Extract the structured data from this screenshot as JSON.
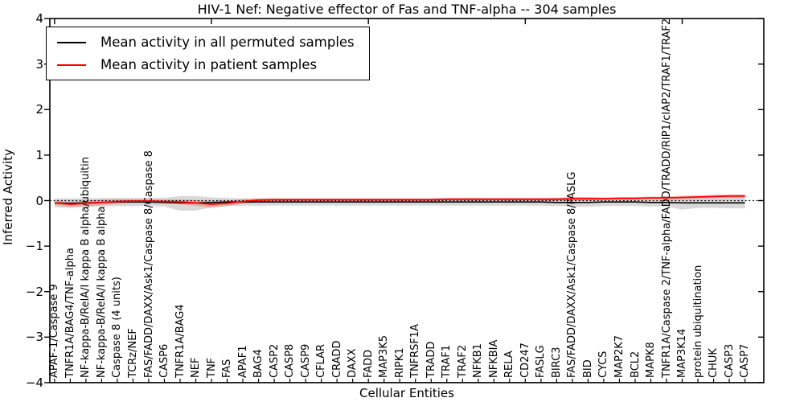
{
  "chart_data": {
    "type": "line",
    "title": "HIV-1 Nef: Negative effector of Fas and TNF-alpha -- 304 samples",
    "xlabel": "Cellular Entities",
    "ylabel": "Inferred Activity",
    "ylim": [
      -4,
      4
    ],
    "yticks": [
      4,
      3,
      2,
      1,
      0,
      -1,
      -2,
      -3,
      -4
    ],
    "grid": false,
    "legend": {
      "position": "upper left",
      "entries": [
        {
          "label": "Mean activity in all permuted samples",
          "color": "#000000"
        },
        {
          "label": "Mean activity in patient samples",
          "color": "#ff0000"
        }
      ]
    },
    "zero_line": {
      "value": 0,
      "style": "dotted",
      "color": "#000000"
    },
    "categories": [
      "APAF-1/Caspase 9",
      "TNFR1A/BAG4/TNF-alpha",
      "NF-kappa-B/RelA/I kappa B alpha/ubiquitin",
      "NF-kappa-B/RelA/I kappa B alpha",
      "Caspase 8 (4 units)",
      "TCRz/NEF",
      "FAS/FADD/DAXX/Ask1/Caspase 8/Caspase 8",
      "CASP6",
      "TNFR1A/BAG4",
      "NEF",
      "TNF",
      "FAS",
      "APAF1",
      "BAG4",
      "CASP2",
      "CASP8",
      "CASP9",
      "CFLAR",
      "CRADD",
      "DAXX",
      "FADD",
      "MAP3K5",
      "RIPK1",
      "TNFRSF1A",
      "TRADD",
      "TRAF1",
      "TRAF2",
      "NFKB1",
      "NFKBIA",
      "RELA",
      "CD247",
      "FASLG",
      "BIRC3",
      "FAS/FADD/DAXX/Ask1/Caspase 8/FASLG",
      "BID",
      "CYCS",
      "MAP2K7",
      "BCL2",
      "MAPK8",
      "TNFR1A/Caspase 2/TNF-alpha/FADD/TRADD/RIP1/cIAP2/TRAF1/TRAF2",
      "MAP3K14",
      "protein ubiquitination",
      "CHUK",
      "CASP3",
      "CASP7"
    ],
    "series": [
      {
        "name": "Mean activity in all permuted samples",
        "color": "#000000",
        "band_color": "rgba(0,0,0,0.15)",
        "values": [
          -0.05,
          -0.06,
          -0.05,
          -0.04,
          -0.03,
          -0.03,
          -0.03,
          -0.04,
          -0.05,
          -0.05,
          -0.04,
          -0.03,
          -0.03,
          -0.03,
          -0.03,
          -0.03,
          -0.03,
          -0.03,
          -0.03,
          -0.03,
          -0.03,
          -0.03,
          -0.03,
          -0.03,
          -0.03,
          -0.03,
          -0.03,
          -0.03,
          -0.03,
          -0.03,
          -0.03,
          -0.03,
          -0.04,
          -0.04,
          -0.04,
          -0.03,
          -0.03,
          -0.03,
          -0.04,
          -0.04,
          -0.05,
          -0.05,
          -0.05,
          -0.05,
          -0.05
        ],
        "band_upper": [
          0.05,
          0.05,
          0.05,
          0.06,
          0.06,
          0.06,
          0.06,
          0.06,
          0.1,
          0.1,
          0.07,
          0.06,
          0.05,
          0.05,
          0.05,
          0.05,
          0.05,
          0.05,
          0.05,
          0.05,
          0.05,
          0.05,
          0.05,
          0.05,
          0.05,
          0.05,
          0.05,
          0.05,
          0.05,
          0.05,
          0.05,
          0.05,
          0.06,
          0.07,
          0.07,
          0.06,
          0.06,
          0.06,
          0.06,
          0.06,
          0.08,
          0.07,
          0.07,
          0.08,
          0.08
        ],
        "band_lower": [
          -0.15,
          -0.16,
          -0.15,
          -0.13,
          -0.12,
          -0.12,
          -0.12,
          -0.13,
          -0.22,
          -0.22,
          -0.15,
          -0.12,
          -0.11,
          -0.11,
          -0.11,
          -0.11,
          -0.11,
          -0.11,
          -0.11,
          -0.11,
          -0.11,
          -0.11,
          -0.11,
          -0.11,
          -0.11,
          -0.11,
          -0.11,
          -0.11,
          -0.11,
          -0.11,
          -0.11,
          -0.11,
          -0.12,
          -0.14,
          -0.14,
          -0.12,
          -0.12,
          -0.12,
          -0.13,
          -0.13,
          -0.2,
          -0.16,
          -0.16,
          -0.17,
          -0.17
        ]
      },
      {
        "name": "Mean activity in patient samples",
        "color": "#ff0000",
        "band_color": "rgba(255,0,0,0.22)",
        "values": [
          -0.05,
          -0.08,
          -0.06,
          -0.04,
          -0.02,
          -0.01,
          -0.01,
          -0.02,
          -0.03,
          -0.05,
          -0.08,
          -0.06,
          -0.02,
          0.01,
          0.02,
          0.02,
          0.02,
          0.02,
          0.02,
          0.02,
          0.02,
          0.02,
          0.02,
          0.02,
          0.02,
          0.03,
          0.03,
          0.03,
          0.03,
          0.03,
          0.03,
          0.03,
          0.03,
          0.04,
          0.04,
          0.04,
          0.05,
          0.05,
          0.06,
          0.06,
          0.07,
          0.08,
          0.09,
          0.1,
          0.1
        ],
        "band_upper": [
          0.0,
          -0.02,
          0.0,
          0.02,
          0.03,
          0.03,
          0.03,
          0.02,
          0.02,
          0.01,
          -0.01,
          0.0,
          0.03,
          0.05,
          0.05,
          0.05,
          0.05,
          0.05,
          0.05,
          0.05,
          0.05,
          0.05,
          0.05,
          0.05,
          0.05,
          0.06,
          0.06,
          0.06,
          0.06,
          0.06,
          0.06,
          0.06,
          0.06,
          0.08,
          0.08,
          0.07,
          0.08,
          0.08,
          0.09,
          0.09,
          0.11,
          0.12,
          0.13,
          0.14,
          0.14
        ],
        "band_lower": [
          -0.1,
          -0.14,
          -0.12,
          -0.1,
          -0.07,
          -0.05,
          -0.05,
          -0.06,
          -0.08,
          -0.11,
          -0.16,
          -0.12,
          -0.07,
          -0.03,
          -0.01,
          -0.01,
          -0.01,
          -0.01,
          -0.01,
          -0.01,
          -0.01,
          -0.01,
          -0.01,
          -0.01,
          -0.01,
          0.0,
          0.0,
          0.0,
          0.0,
          0.0,
          0.0,
          0.0,
          0.0,
          0.0,
          0.0,
          0.01,
          0.02,
          0.02,
          0.03,
          0.03,
          0.03,
          0.04,
          0.05,
          0.06,
          0.06
        ]
      }
    ]
  }
}
